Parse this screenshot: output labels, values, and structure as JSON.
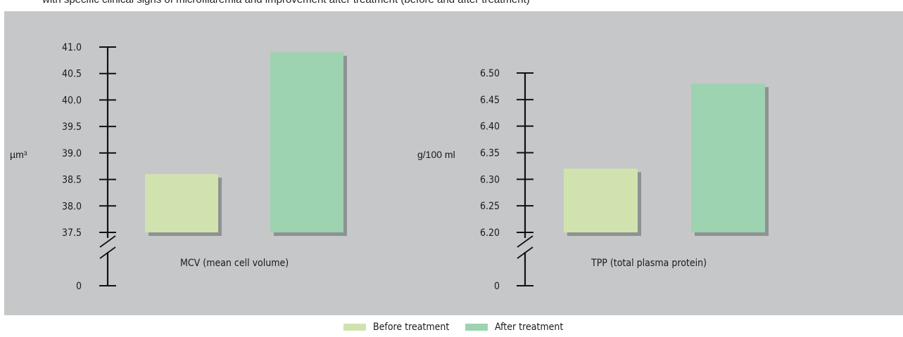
{
  "top_caption": "with specific clinical signs of microfilaremia and improvement after treatment (before and after treatment)",
  "colors": {
    "panel_bg": "#c6c7c8",
    "before": "#d0e3af",
    "after": "#9dd3b0",
    "shadow": "#8f9192",
    "axis": "#111111"
  },
  "legend": {
    "before_label": "Before treatment",
    "after_label": "After treatment"
  },
  "chart_data": [
    {
      "type": "bar",
      "category_label": "MCV (mean cell volume)",
      "unit": "µm³",
      "series": [
        {
          "name": "Before treatment",
          "value": 38.6
        },
        {
          "name": "After treatment",
          "value": 40.9
        }
      ],
      "y_ticks": [
        "37.5",
        "38.0",
        "38.5",
        "39.0",
        "39.5",
        "40.0",
        "40.5",
        "41.0"
      ],
      "y_tick_values": [
        37.5,
        38.0,
        38.5,
        39.0,
        39.5,
        40.0,
        40.5,
        41.0
      ],
      "ylim": [
        37.5,
        41.0
      ],
      "axis_break": true,
      "zero_label": "0"
    },
    {
      "type": "bar",
      "category_label": "TPP (total plasma protein)",
      "unit": "g/100 ml",
      "series": [
        {
          "name": "Before treatment",
          "value": 6.32
        },
        {
          "name": "After treatment",
          "value": 6.48
        }
      ],
      "y_ticks": [
        "6.20",
        "6.25",
        "6.30",
        "6.35",
        "6.40",
        "6.45",
        "6.50"
      ],
      "y_tick_values": [
        6.2,
        6.25,
        6.3,
        6.35,
        6.4,
        6.45,
        6.5
      ],
      "ylim": [
        6.2,
        6.5
      ],
      "axis_break": true,
      "zero_label": "0"
    }
  ]
}
